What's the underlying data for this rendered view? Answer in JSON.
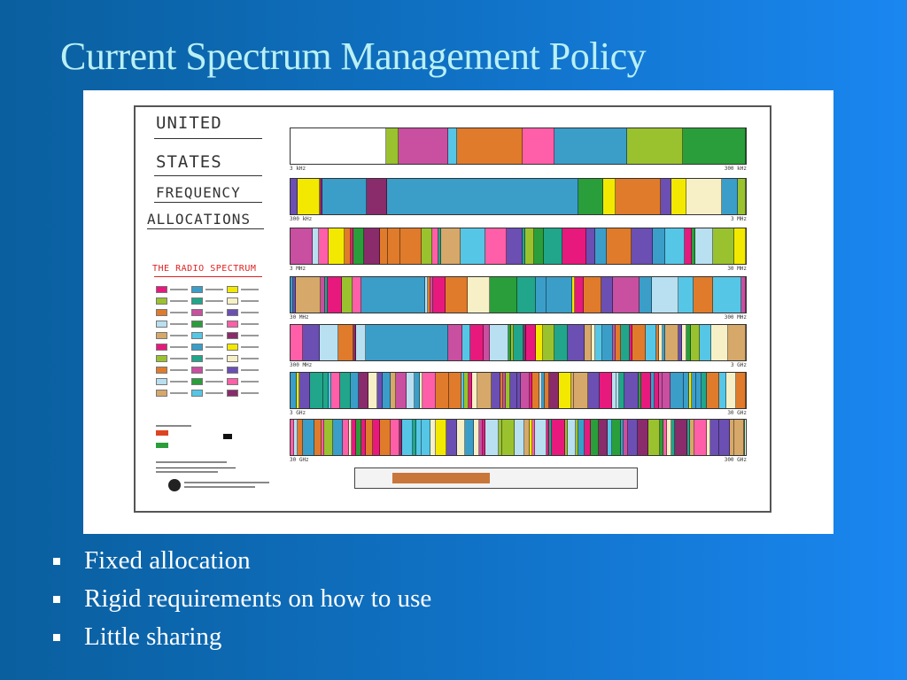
{
  "slide": {
    "title": "Current Spectrum Management Policy",
    "bullets": [
      "Fixed allocation",
      "Rigid requirements on how to use",
      "Little sharing"
    ]
  },
  "chart": {
    "heading_lines": [
      "UNITED",
      "STATES",
      "FREQUENCY",
      "ALLOCATIONS"
    ],
    "subtitle": "THE RADIO SPECTRUM",
    "band_scales": [
      {
        "start": "3 kHz",
        "end": "300 kHz"
      },
      {
        "start": "300 kHz",
        "end": "3 MHz"
      },
      {
        "start": "3 MHz",
        "end": "30 MHz"
      },
      {
        "start": "30 MHz",
        "end": "300 MHz"
      },
      {
        "start": "300 MHz",
        "end": "3 GHz"
      },
      {
        "start": "3 GHz",
        "end": "30 GHz"
      },
      {
        "start": "30 GHz",
        "end": "300 GHz"
      }
    ]
  },
  "colors": {
    "title": "#b9f0f4",
    "bullet_text": "#ffffff",
    "subtitle_red": "#dd2222",
    "palette": [
      "#e8197d",
      "#3a9ec9",
      "#f3e900",
      "#9ac22f",
      "#21a68b",
      "#f7f0c6",
      "#e07b2b",
      "#c94fa1",
      "#6b4fb3",
      "#b8e0f0",
      "#2a9e3a",
      "#ff5fa8",
      "#d6a86a",
      "#56c6e6",
      "#8a2b6b"
    ]
  }
}
